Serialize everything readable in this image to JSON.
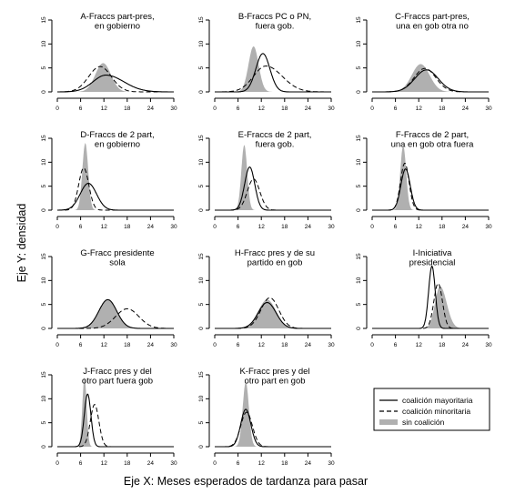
{
  "figure": {
    "ylabel": "Eje Y: densidad",
    "xlabel": "Eje X: Meses esperados de tardanza para pasar"
  },
  "legend": {
    "entries": [
      {
        "key": "mayoritaria",
        "label": "coalición mayoritaria",
        "style": "solid"
      },
      {
        "key": "minoritaria",
        "label": "coalición minoritaria",
        "style": "dashed"
      },
      {
        "key": "sin",
        "label": "sin coalición",
        "style": "gray-fill"
      }
    ]
  },
  "chart_data": [
    {
      "type": "area",
      "title_lines": [
        "A-Fraccs part-pres,",
        "en gobierno"
      ],
      "xlim": [
        0,
        30
      ],
      "ylim": [
        0,
        15
      ],
      "xticks": [
        0,
        6,
        12,
        18,
        24,
        30
      ],
      "yticks": [
        0,
        5,
        10,
        15
      ],
      "series": {
        "sin": {
          "mean": 11.8,
          "sd": 2.0,
          "peak": 6.0
        },
        "mayoritaria": {
          "mean": 12.5,
          "sd": 3.3,
          "peak": 3.5,
          "skew": 1.4
        },
        "minoritaria": {
          "mean": 11.0,
          "sd": 2.9,
          "peak": 5.3
        }
      }
    },
    {
      "type": "area",
      "title_lines": [
        "B-Fraccs PC o PN,",
        "fuera gob."
      ],
      "xlim": [
        0,
        30
      ],
      "ylim": [
        0,
        15
      ],
      "xticks": [
        0,
        6,
        12,
        18,
        24,
        30
      ],
      "yticks": [
        0,
        5,
        10,
        15
      ],
      "series": {
        "sin": {
          "mean": 10.0,
          "sd": 1.3,
          "peak": 9.5
        },
        "mayoritaria": {
          "mean": 12.4,
          "sd": 1.8,
          "peak": 8.0
        },
        "minoritaria": {
          "mean": 13.2,
          "sd": 3.2,
          "peak": 5.4,
          "skew": 1.3
        }
      }
    },
    {
      "type": "area",
      "title_lines": [
        "C-Fraccs part-pres,",
        "una en gob otra no"
      ],
      "xlim": [
        0,
        30
      ],
      "ylim": [
        0,
        15
      ],
      "xticks": [
        0,
        6,
        12,
        18,
        24,
        30
      ],
      "yticks": [
        0,
        5,
        10,
        15
      ],
      "series": {
        "sin": {
          "mean": 12.5,
          "sd": 2.3,
          "peak": 5.8
        },
        "mayoritaria": {
          "mean": 14.0,
          "sd": 3.0,
          "peak": 4.6
        },
        "minoritaria": {
          "mean": 13.6,
          "sd": 2.8,
          "peak": 4.9
        }
      }
    },
    {
      "type": "area",
      "title_lines": [
        "D-Fraccs de 2 part,",
        "en gobierno"
      ],
      "xlim": [
        0,
        30
      ],
      "ylim": [
        0,
        15
      ],
      "xticks": [
        0,
        6,
        12,
        18,
        24,
        30
      ],
      "yticks": [
        0,
        5,
        10,
        15
      ],
      "series": {
        "sin": {
          "mean": 7.2,
          "sd": 0.75,
          "peak": 14.0
        },
        "mayoritaria": {
          "mean": 8.0,
          "sd": 2.1,
          "peak": 5.6
        },
        "minoritaria": {
          "mean": 6.8,
          "sd": 1.3,
          "peak": 8.8
        }
      }
    },
    {
      "type": "area",
      "title_lines": [
        "E-Fraccs de 2 part,",
        "fuera gob."
      ],
      "xlim": [
        0,
        30
      ],
      "ylim": [
        0,
        15
      ],
      "xticks": [
        0,
        6,
        12,
        18,
        24,
        30
      ],
      "yticks": [
        0,
        5,
        10,
        15
      ],
      "series": {
        "sin": {
          "mean": 7.6,
          "sd": 0.75,
          "peak": 13.6
        },
        "mayoritaria": {
          "mean": 9.0,
          "sd": 1.3,
          "peak": 9.0
        },
        "minoritaria": {
          "mean": 10.0,
          "sd": 1.6,
          "peak": 6.5
        }
      }
    },
    {
      "type": "area",
      "title_lines": [
        "F-Fraccs de 2 part,",
        "una en gob otra fuera"
      ],
      "xlim": [
        0,
        30
      ],
      "ylim": [
        0,
        15
      ],
      "xticks": [
        0,
        6,
        12,
        18,
        24,
        30
      ],
      "yticks": [
        0,
        5,
        10,
        15
      ],
      "series": {
        "sin": {
          "mean": 8.0,
          "sd": 0.75,
          "peak": 13.5
        },
        "mayoritaria": {
          "mean": 8.6,
          "sd": 1.2,
          "peak": 8.6
        },
        "minoritaria": {
          "mean": 8.4,
          "sd": 1.1,
          "peak": 9.8
        }
      }
    },
    {
      "type": "area",
      "title_lines": [
        "G-Fracc presidente",
        "sola"
      ],
      "xlim": [
        0,
        30
      ],
      "ylim": [
        0,
        15
      ],
      "xticks": [
        0,
        6,
        12,
        18,
        24,
        30
      ],
      "yticks": [
        0,
        5,
        10,
        15
      ],
      "series": {
        "sin": {
          "mean": 13.0,
          "sd": 2.3,
          "peak": 6.0
        },
        "mayoritaria": {
          "mean": 13.0,
          "sd": 2.3,
          "peak": 6.0
        },
        "minoritaria": {
          "mean": 18.0,
          "sd": 3.0,
          "peak": 4.1
        }
      }
    },
    {
      "type": "area",
      "title_lines": [
        "H-Fracc pres y de su",
        "partido en gob"
      ],
      "xlim": [
        0,
        30
      ],
      "ylim": [
        0,
        15
      ],
      "xticks": [
        0,
        6,
        12,
        18,
        24,
        30
      ],
      "yticks": [
        0,
        5,
        10,
        15
      ],
      "series": {
        "sin": {
          "mean": 13.5,
          "sd": 2.3,
          "peak": 6.0
        },
        "mayoritaria": {
          "mean": 13.5,
          "sd": 2.3,
          "peak": 5.4
        },
        "minoritaria": {
          "mean": 14.2,
          "sd": 2.3,
          "peak": 6.4
        }
      }
    },
    {
      "type": "area",
      "title_lines": [
        "I-Iniciativa",
        "presidencial"
      ],
      "xlim": [
        0,
        30
      ],
      "ylim": [
        0,
        15
      ],
      "xticks": [
        0,
        6,
        12,
        18,
        24,
        30
      ],
      "yticks": [
        0,
        5,
        10,
        15
      ],
      "series": {
        "sin": {
          "mean": 17.5,
          "sd": 1.3,
          "peak": 8.8,
          "skew": 1.3
        },
        "mayoritaria": {
          "mean": 15.4,
          "sd": 0.85,
          "peak": 13.0
        },
        "minoritaria": {
          "mean": 17.0,
          "sd": 1.1,
          "peak": 9.4
        }
      }
    },
    {
      "type": "area",
      "title_lines": [
        "J-Fracc pres y del",
        "otro part fuera gob"
      ],
      "xlim": [
        0,
        30
      ],
      "ylim": [
        0,
        15
      ],
      "xticks": [
        0,
        6,
        12,
        18,
        24,
        30
      ],
      "yticks": [
        0,
        5,
        10,
        15
      ],
      "series": {
        "sin": {
          "mean": 7.0,
          "sd": 0.55,
          "peak": 14.5
        },
        "mayoritaria": {
          "mean": 7.8,
          "sd": 0.85,
          "peak": 11.0
        },
        "minoritaria": {
          "mean": 9.6,
          "sd": 1.1,
          "peak": 8.8
        }
      }
    },
    {
      "type": "area",
      "title_lines": [
        "K-Fracc pres y del",
        "otro part en gob"
      ],
      "xlim": [
        0,
        30
      ],
      "ylim": [
        0,
        15
      ],
      "xticks": [
        0,
        6,
        12,
        18,
        24,
        30
      ],
      "yticks": [
        0,
        5,
        10,
        15
      ],
      "series": {
        "sin": {
          "mean": 8.0,
          "sd": 0.8,
          "peak": 13.5
        },
        "mayoritaria": {
          "mean": 8.0,
          "sd": 1.3,
          "peak": 7.8
        },
        "minoritaria": {
          "mean": 8.2,
          "sd": 1.5,
          "peak": 7.2
        }
      }
    }
  ]
}
